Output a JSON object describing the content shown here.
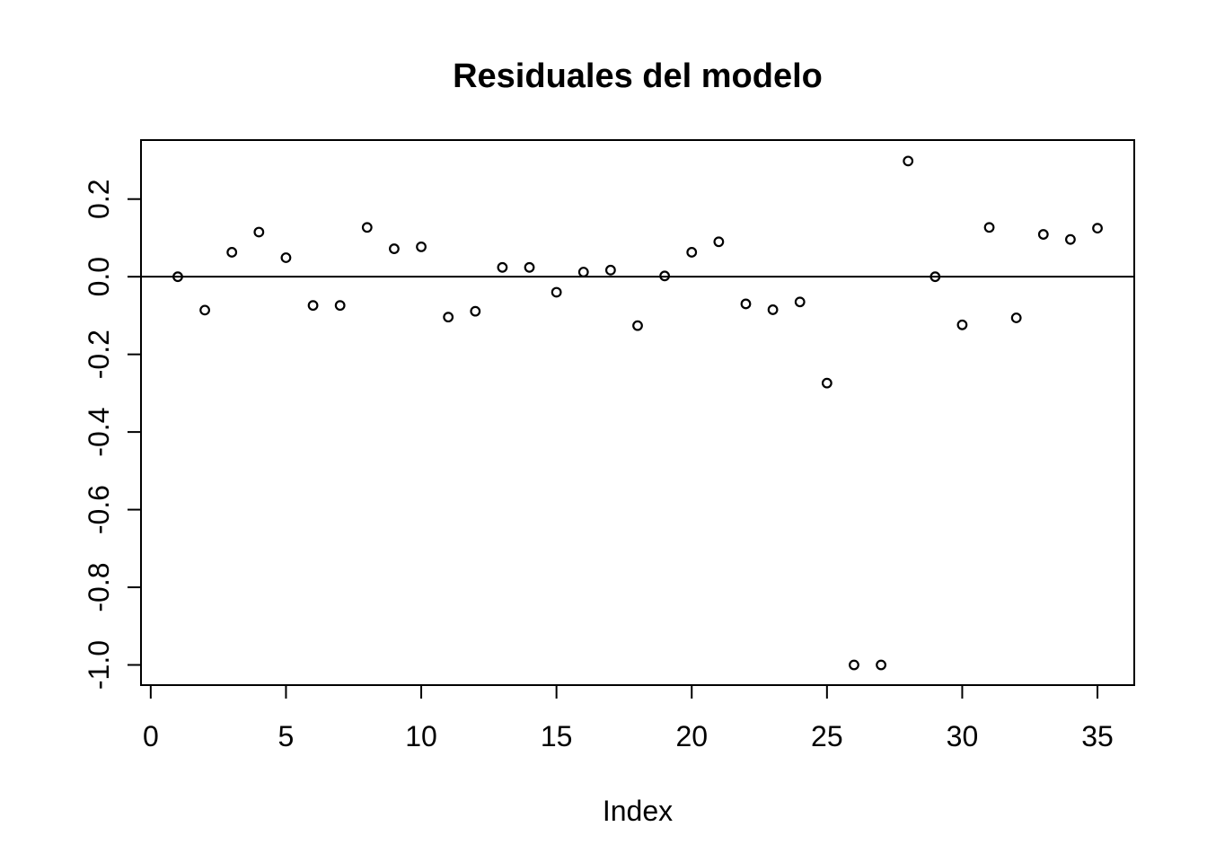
{
  "page": {
    "background": "#ffffff"
  },
  "chart_data": {
    "type": "scatter",
    "title": "Residuales del modelo",
    "xlabel": "Index",
    "ylabel": "",
    "marker": "open-circle",
    "grid": false,
    "legend": null,
    "x": [
      1,
      2,
      3,
      4,
      5,
      6,
      7,
      8,
      9,
      10,
      11,
      12,
      13,
      14,
      15,
      16,
      17,
      18,
      19,
      20,
      21,
      22,
      23,
      24,
      25,
      26,
      27,
      28,
      29,
      30,
      31,
      32,
      33,
      34,
      35
    ],
    "y": [
      0.0,
      -0.086,
      0.063,
      0.115,
      0.049,
      -0.074,
      -0.074,
      0.127,
      0.072,
      0.077,
      -0.104,
      -0.089,
      0.024,
      0.024,
      -0.04,
      0.012,
      0.017,
      -0.126,
      0.002,
      0.063,
      0.09,
      -0.07,
      -0.085,
      -0.065,
      -0.274,
      -1.0,
      -1.0,
      0.298,
      0.0,
      -0.124,
      0.127,
      -0.106,
      0.109,
      0.096,
      0.125
    ],
    "xlim": [
      -0.36,
      36.36
    ],
    "ylim": [
      -1.052,
      0.352
    ],
    "xticks": {
      "values": [
        0,
        5,
        10,
        15,
        20,
        25,
        30,
        35
      ],
      "labels": [
        "0",
        "5",
        "10",
        "15",
        "20",
        "25",
        "30",
        "35"
      ]
    },
    "yticks": {
      "values": [
        0.2,
        0.0,
        -0.2,
        -0.4,
        -0.6,
        -0.8,
        -1.0
      ],
      "labels": [
        "0.2",
        "0.0",
        "-0.2",
        "-0.4",
        "-0.6",
        "-0.8",
        "-1.0"
      ]
    },
    "reference_line_y": 0,
    "colors": {
      "foreground": "#000000",
      "background": "#ffffff"
    }
  }
}
